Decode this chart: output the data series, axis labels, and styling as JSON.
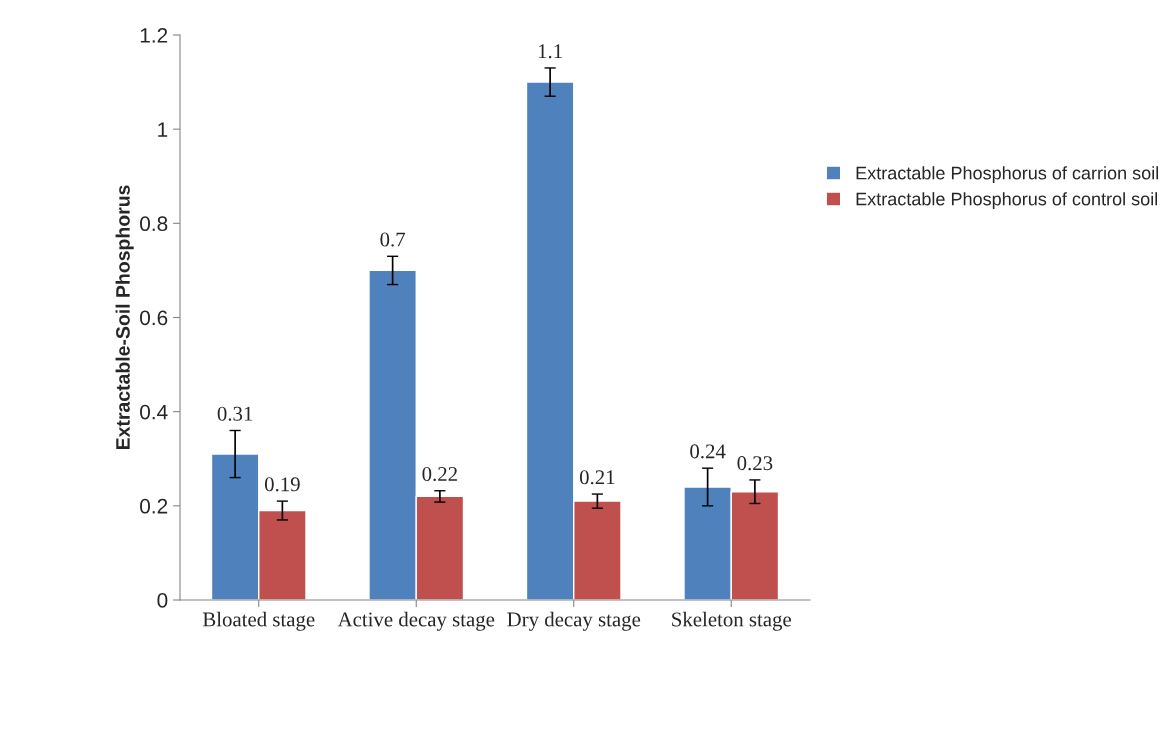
{
  "chart_data": {
    "type": "bar",
    "ylabel": "Extractable-Soil Phosphorus",
    "categories": [
      "Bloated stage",
      "Active decay stage",
      "Dry decay stage",
      "Skeleton stage"
    ],
    "series": [
      {
        "name": "Extractable Phosphorus of carrion soil",
        "color": "#4f81bd",
        "values": [
          0.31,
          0.7,
          1.1,
          0.24
        ],
        "errors": [
          0.05,
          0.03,
          0.03,
          0.04
        ]
      },
      {
        "name": "Extractable Phosphorus of control soil",
        "color": "#c0504d",
        "values": [
          0.19,
          0.22,
          0.21,
          0.23
        ],
        "errors": [
          0.02,
          0.012,
          0.015,
          0.025
        ]
      }
    ],
    "ylim": [
      0,
      1.2
    ],
    "yticks": [
      0,
      0.2,
      0.4,
      0.6,
      0.8,
      1,
      1.2
    ],
    "data_labels": true,
    "legend": "right",
    "grid": false
  }
}
